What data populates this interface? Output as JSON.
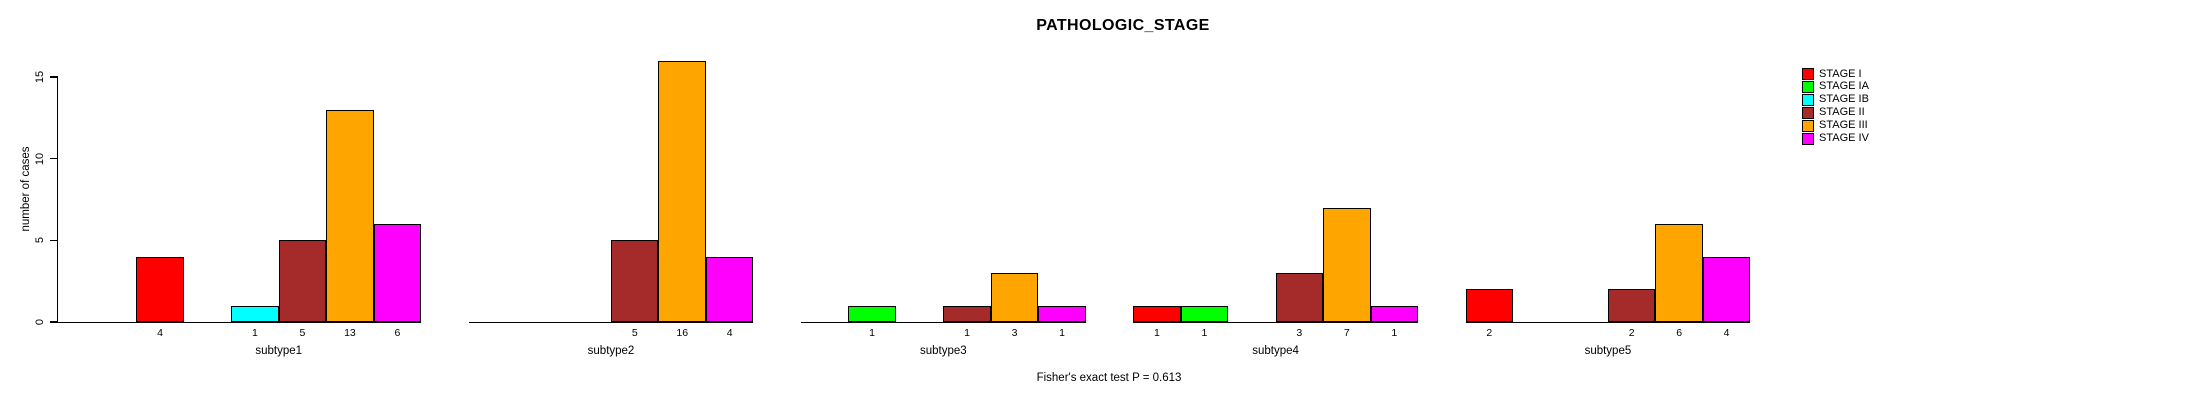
{
  "chart_data": {
    "type": "bar",
    "title": "PATHOLOGIC_STAGE",
    "ylabel": "number of cases",
    "xlabel": "",
    "footnote": "Fisher's exact test P = 0.613",
    "categories": [
      "subtype1",
      "subtype2",
      "subtype3",
      "subtype4",
      "subtype5"
    ],
    "series": [
      {
        "name": "STAGE I",
        "color": "#FF0000",
        "values": [
          4,
          0,
          0,
          1,
          2
        ]
      },
      {
        "name": "STAGE IA",
        "color": "#00FF00",
        "values": [
          0,
          0,
          1,
          1,
          0
        ]
      },
      {
        "name": "STAGE IB",
        "color": "#00FFFF",
        "values": [
          1,
          0,
          0,
          0,
          0
        ]
      },
      {
        "name": "STAGE II",
        "color": "#A52A2A",
        "values": [
          5,
          5,
          1,
          3,
          2
        ]
      },
      {
        "name": "STAGE III",
        "color": "#FFA500",
        "values": [
          13,
          16,
          3,
          7,
          6
        ]
      },
      {
        "name": "STAGE IV",
        "color": "#FF00FF",
        "values": [
          6,
          4,
          1,
          1,
          4
        ]
      }
    ],
    "yticks": [
      0,
      5,
      10,
      15
    ],
    "ylim": [
      0,
      16
    ],
    "grid": false,
    "legend_position": "top-right",
    "value_labels": "nonzero bar values printed under each bar"
  }
}
